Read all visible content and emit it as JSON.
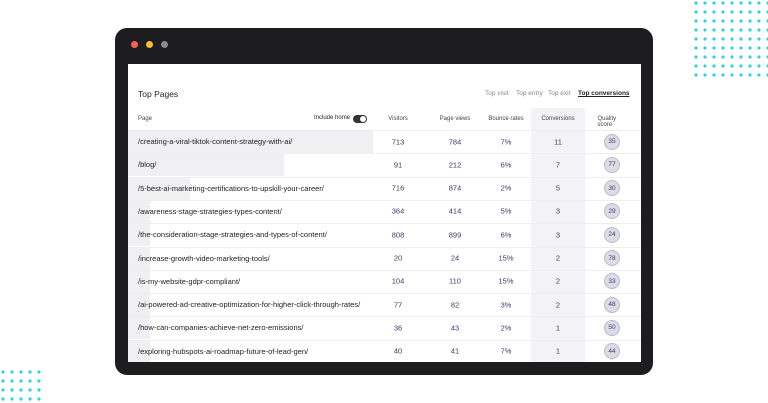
{
  "header": {
    "title": "Top Pages",
    "tabs": [
      "Top visit",
      "Top entry",
      "Top exit",
      "Top conversions"
    ]
  },
  "table": {
    "toggle": "Include home",
    "columns": [
      "Page",
      "Visitors",
      "Page views",
      "Bounce rates",
      "Conversions",
      "Quality score"
    ],
    "rows": [
      [
        "/creating-a-viral-tiktok-content-strategy-with-ai/",
        "713",
        "784",
        "7%",
        "11",
        "35"
      ],
      [
        "/blog/",
        "91",
        "212",
        "6%",
        "7",
        "77"
      ],
      [
        "/5-best-ai-marketing-certifications-to-upskill-your-career/",
        "716",
        "874",
        "2%",
        "5",
        "30"
      ],
      [
        "/awareness-stage-strategies-types-content/",
        "364",
        "414",
        "5%",
        "3",
        "29"
      ],
      [
        "/the-consideration-stage-strategies-and-types-of-content/",
        "808",
        "899",
        "6%",
        "3",
        "24"
      ],
      [
        "/increase-growth-video-marketing-tools/",
        "20",
        "24",
        "15%",
        "2",
        "78"
      ],
      [
        "/is-my-website-gdpr-compliant/",
        "104",
        "110",
        "15%",
        "2",
        "33"
      ],
      [
        "/ai-powered-ad-creative-optimization-for-higher-click-through-rates/",
        "77",
        "82",
        "3%",
        "2",
        "48"
      ],
      [
        "/how-can-companies-achieve-net-zero-emissions/",
        "36",
        "43",
        "2%",
        "1",
        "50"
      ],
      [
        "/exploring-hubspots-ai-roadmap-future-of-lead-gen/",
        "40",
        "41",
        "7%",
        "1",
        "44"
      ]
    ]
  }
}
